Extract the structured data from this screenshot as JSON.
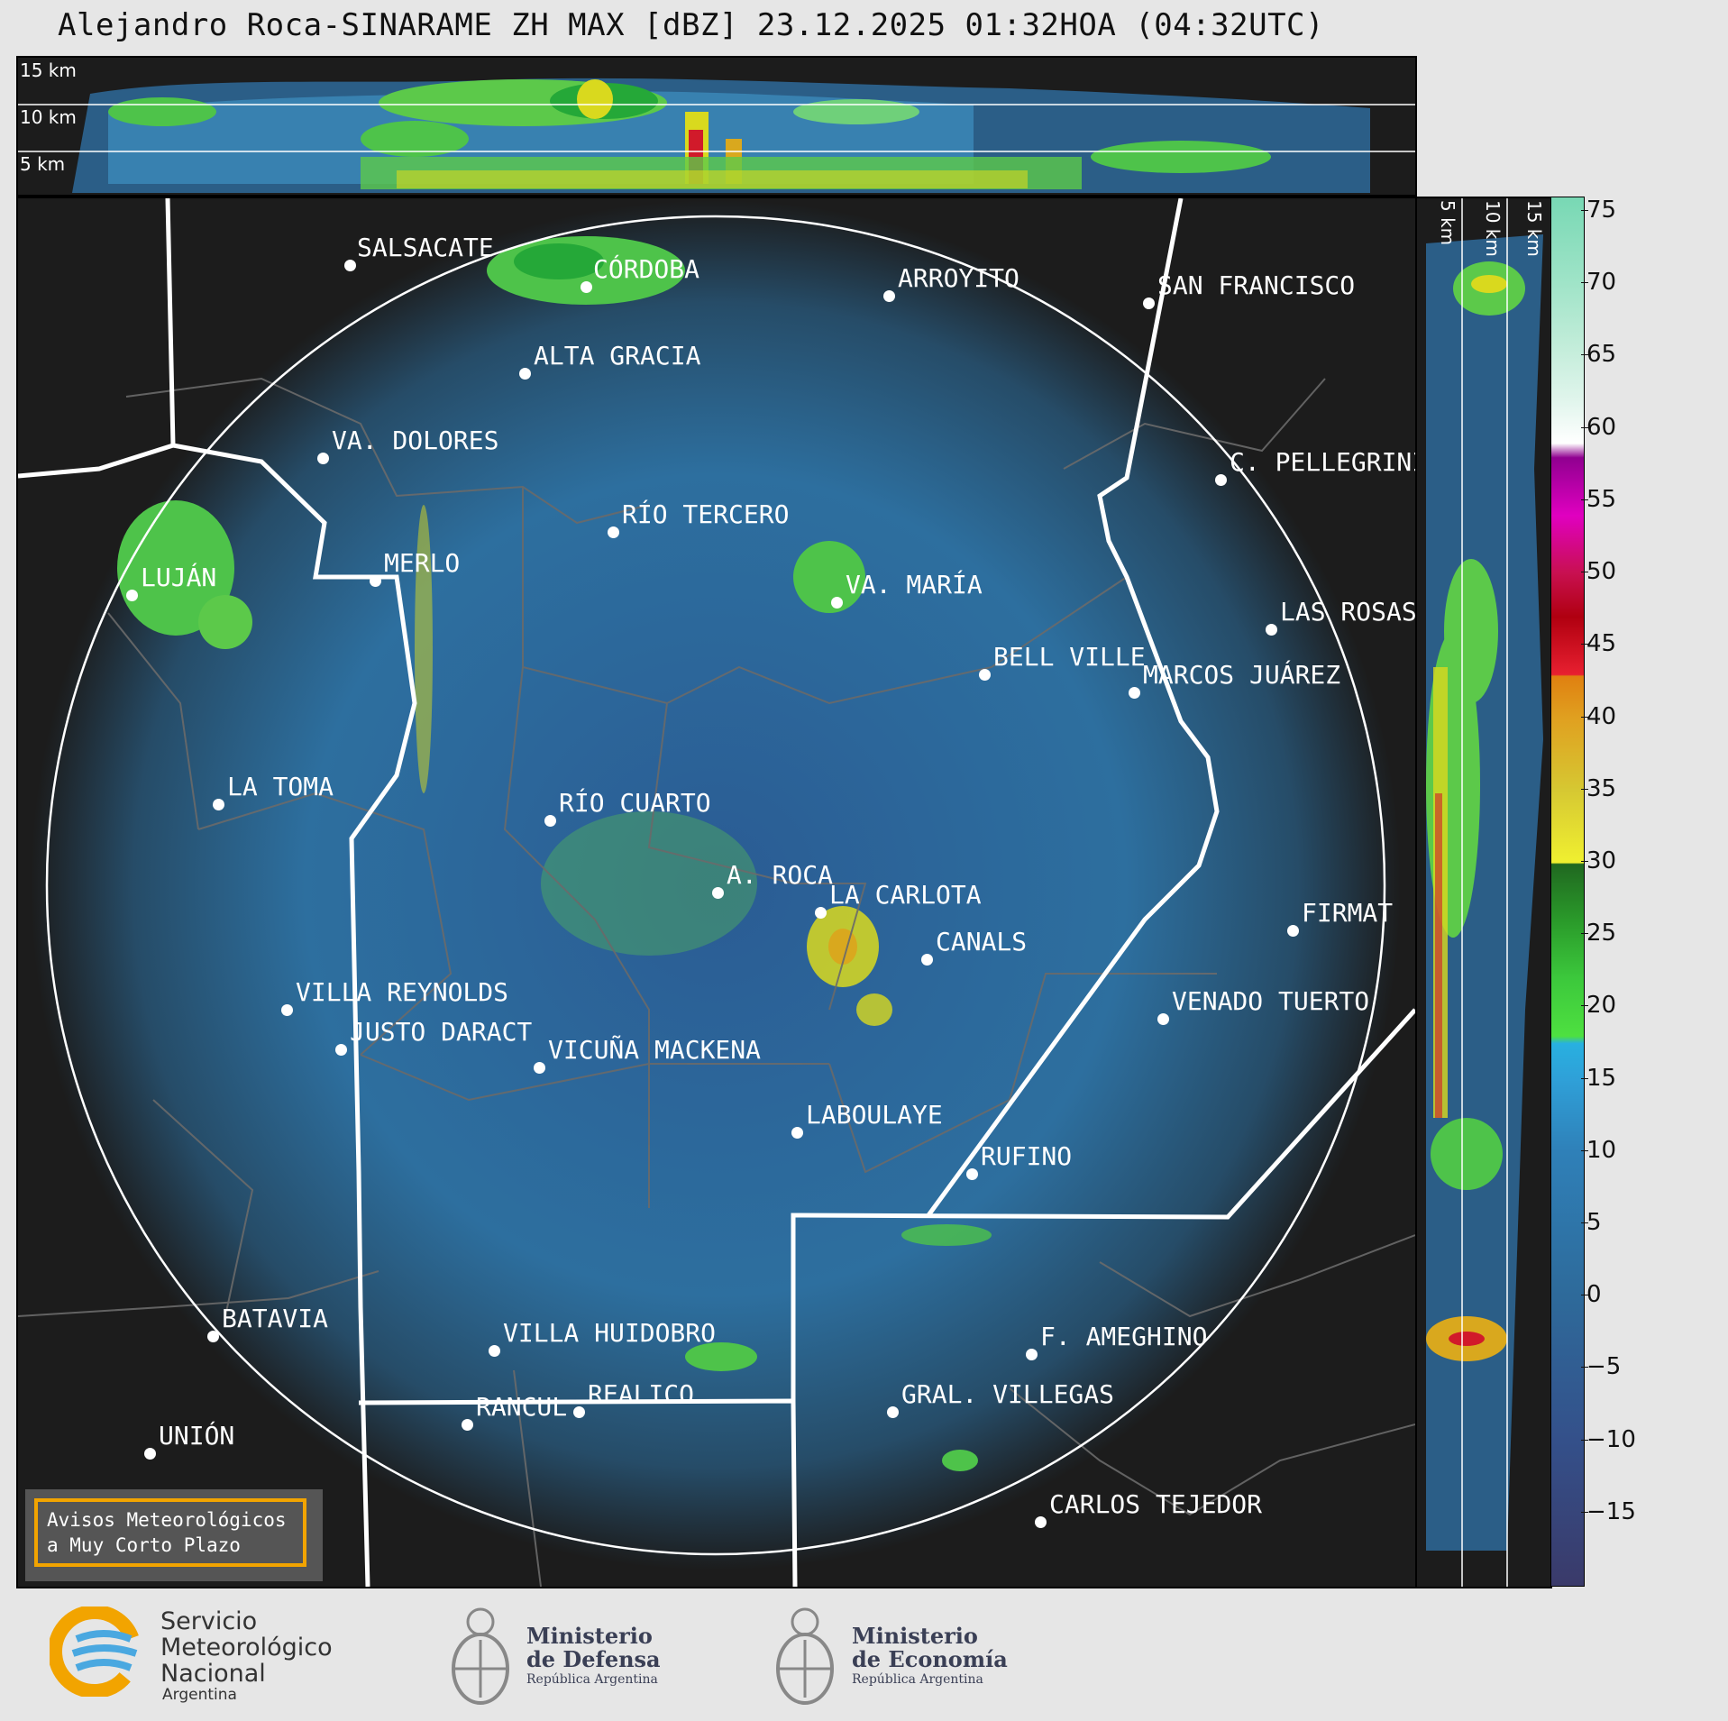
{
  "title": "Alejandro Roca-SINARAME ZH MAX [dBZ] 23.12.2025 01:32HOA (04:32UTC)",
  "top_panel": {
    "km_labels": [
      "15 km",
      "10 km",
      "5 km"
    ]
  },
  "side_panel": {
    "km_labels": [
      "5 km",
      "10 km",
      "15 km"
    ]
  },
  "cities": [
    {
      "name": "SALSACATE"
    },
    {
      "name": "CÓRDOBA"
    },
    {
      "name": "ARROYITO"
    },
    {
      "name": "SAN FRANCISCO"
    },
    {
      "name": "ALTA GRACIA"
    },
    {
      "name": "VA. DOLORES"
    },
    {
      "name": "C. PELLEGRINI"
    },
    {
      "name": "RÍO TERCERO"
    },
    {
      "name": "LUJÁN"
    },
    {
      "name": "MERLO"
    },
    {
      "name": "VA. MARÍA"
    },
    {
      "name": "LAS ROSAS"
    },
    {
      "name": "BELL VILLE"
    },
    {
      "name": "MARCOS JUÁREZ"
    },
    {
      "name": "LA TOMA"
    },
    {
      "name": "RÍO CUARTO"
    },
    {
      "name": "A. ROCA"
    },
    {
      "name": "LA CARLOTA"
    },
    {
      "name": "FIRMAT"
    },
    {
      "name": "CANALS"
    },
    {
      "name": "VILLA REYNOLDS"
    },
    {
      "name": "VENADO TUERTO"
    },
    {
      "name": "JUSTO DARACT"
    },
    {
      "name": "VICUÑA MACKENA"
    },
    {
      "name": "LABOULAYE"
    },
    {
      "name": "RUFINO"
    },
    {
      "name": "BATAVIA"
    },
    {
      "name": "VILLA HUIDOBRO"
    },
    {
      "name": "F. AMEGHINO"
    },
    {
      "name": "REALICO"
    },
    {
      "name": "RANCUL"
    },
    {
      "name": "GRAL. VILLEGAS"
    },
    {
      "name": "UNIÓN"
    },
    {
      "name": "CARLOS TEJEDOR"
    }
  ],
  "colorbar": {
    "ticks": [
      "75",
      "70",
      "65",
      "60",
      "55",
      "50",
      "45",
      "40",
      "35",
      "30",
      "25",
      "20",
      "15",
      "10",
      "5",
      "0",
      "−5",
      "−10",
      "−15"
    ],
    "min": -20,
    "max": 76
  },
  "avisos": {
    "line1": "Avisos Meteorológicos",
    "line2": "a Muy Corto Plazo"
  },
  "logos": {
    "smn": {
      "line1": "Servicio",
      "line2": "Meteorológico",
      "line3": "Nacional",
      "line4": "Argentina"
    },
    "defensa": {
      "line1": "Ministerio",
      "line2": "de Defensa",
      "line3": "República Argentina"
    },
    "economia": {
      "line1": "Ministerio",
      "line2": "de Economía",
      "line3": "República Argentina"
    }
  }
}
